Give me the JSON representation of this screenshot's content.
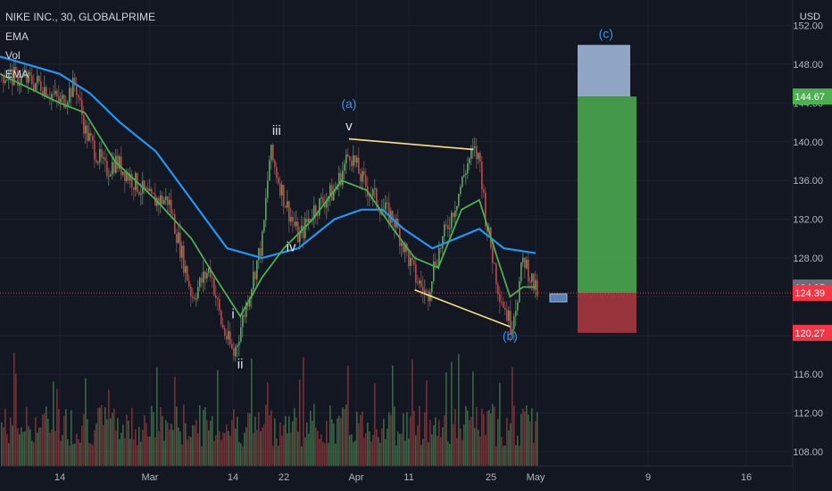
{
  "header": {
    "symbol": "NIKE INC., 30, GLOBALPRIME",
    "indicators": [
      "EMA",
      "Vol",
      "EMA"
    ]
  },
  "price_axis": {
    "currency": "USD",
    "ticks": [
      152,
      148,
      144,
      140,
      136,
      132,
      128,
      124,
      120,
      116,
      112,
      108
    ],
    "tick_labels": [
      "152.00",
      "148.00",
      "144.00",
      "140.00",
      "136.00",
      "132.00",
      "128.00",
      "124.00",
      "120.00",
      "116.00",
      "112.00",
      "108.00"
    ],
    "badges": [
      {
        "value": 144.67,
        "label": "144.67",
        "color": "#4caf50"
      },
      {
        "value": 124.95,
        "label": "124.95",
        "color": "#6a6d78"
      },
      {
        "value": 124.39,
        "label": "124.39",
        "color": "#f23645"
      },
      {
        "value": 120.27,
        "label": "120.27",
        "color": "#f23645"
      }
    ]
  },
  "time_axis": {
    "labels": [
      "14",
      "Mar",
      "14",
      "22",
      "Apr",
      "11",
      "25",
      "May",
      "9",
      "16"
    ]
  },
  "colors": {
    "background": "#131722",
    "grid": "#1e222d",
    "up": "#26a69a",
    "down": "#ef5350",
    "candle_up": "#4caf50",
    "candle_down": "#e53935",
    "ema_fast": "#4caf50",
    "ema_slow": "#2196f3",
    "trendline": "#ffe082",
    "target_box": "#a7bfe0",
    "profit_box": "#4caf50",
    "loss_box": "#b0373f",
    "wave_label": "#e0e3eb",
    "abc_label": "#3d8fe8"
  },
  "chart_data": {
    "type": "candlestick",
    "title": "NIKE INC., 30, GLOBALPRIME",
    "xlabel": "",
    "ylabel": "USD",
    "ylim": [
      106,
      153
    ],
    "grid": true,
    "price_path": [
      {
        "date": "Feb 08",
        "close": 147
      },
      {
        "date": "Feb 12",
        "close": 146
      },
      {
        "date": "Feb 14",
        "close": 144
      },
      {
        "date": "Feb 17",
        "close": 146
      },
      {
        "date": "Feb 19",
        "close": 141
      },
      {
        "date": "Feb 23",
        "close": 137
      },
      {
        "date": "Feb 25",
        "close": 138
      },
      {
        "date": "Mar 01",
        "close": 134
      },
      {
        "date": "Mar 04",
        "close": 134
      },
      {
        "date": "Mar 08",
        "close": 124
      },
      {
        "date": "Mar 11",
        "close": 127
      },
      {
        "date": "Mar 13",
        "close": 121
      },
      {
        "date": "Mar 15",
        "close": 118
      },
      {
        "date": "Mar 17",
        "close": 124
      },
      {
        "date": "Mar 19",
        "close": 130
      },
      {
        "date": "Mar 20",
        "close": 139
      },
      {
        "date": "Mar 22",
        "close": 134
      },
      {
        "date": "Mar 24",
        "close": 130
      },
      {
        "date": "Mar 26",
        "close": 133
      },
      {
        "date": "Mar 29",
        "close": 135
      },
      {
        "date": "Mar 31",
        "close": 139
      },
      {
        "date": "Apr 02",
        "close": 136
      },
      {
        "date": "Apr 06",
        "close": 133
      },
      {
        "date": "Apr 08",
        "close": 132
      },
      {
        "date": "Apr 12",
        "close": 126
      },
      {
        "date": "Apr 14",
        "close": 124
      },
      {
        "date": "Apr 15",
        "close": 127
      },
      {
        "date": "Apr 19",
        "close": 134
      },
      {
        "date": "Apr 21",
        "close": 138
      },
      {
        "date": "Apr 22",
        "close": 139
      },
      {
        "date": "Apr 23",
        "close": 138
      },
      {
        "date": "Apr 24",
        "close": 132
      },
      {
        "date": "Apr 26",
        "close": 125
      },
      {
        "date": "Apr 28",
        "close": 121
      },
      {
        "date": "Apr 29",
        "close": 124
      },
      {
        "date": "Apr 30",
        "close": 128
      },
      {
        "date": "May 01",
        "close": 124.4
      }
    ],
    "ema_fast": [
      {
        "date": "Feb 08",
        "value": 147
      },
      {
        "date": "Feb 14",
        "value": 144
      },
      {
        "date": "Feb 19",
        "value": 143
      },
      {
        "date": "Feb 25",
        "value": 138
      },
      {
        "date": "Mar 02",
        "value": 134
      },
      {
        "date": "Mar 08",
        "value": 130
      },
      {
        "date": "Mar 12",
        "value": 126
      },
      {
        "date": "Mar 16",
        "value": 122
      },
      {
        "date": "Mar 19",
        "value": 126
      },
      {
        "date": "Mar 22",
        "value": 129
      },
      {
        "date": "Mar 26",
        "value": 132
      },
      {
        "date": "Mar 30",
        "value": 136
      },
      {
        "date": "Apr 03",
        "value": 135
      },
      {
        "date": "Apr 08",
        "value": 131
      },
      {
        "date": "Apr 12",
        "value": 128
      },
      {
        "date": "Apr 16",
        "value": 127
      },
      {
        "date": "Apr 20",
        "value": 133
      },
      {
        "date": "Apr 23",
        "value": 134
      },
      {
        "date": "Apr 26",
        "value": 128
      },
      {
        "date": "Apr 28",
        "value": 124
      },
      {
        "date": "Apr 30",
        "value": 125
      },
      {
        "date": "May 01",
        "value": 125
      }
    ],
    "ema_slow": [
      {
        "date": "Feb 08",
        "value": 148.8
      },
      {
        "date": "Feb 14",
        "value": 147
      },
      {
        "date": "Feb 20",
        "value": 145
      },
      {
        "date": "Feb 26",
        "value": 142
      },
      {
        "date": "Mar 02",
        "value": 139
      },
      {
        "date": "Mar 08",
        "value": 134
      },
      {
        "date": "Mar 14",
        "value": 129
      },
      {
        "date": "Mar 19",
        "value": 128
      },
      {
        "date": "Mar 24",
        "value": 129
      },
      {
        "date": "Mar 29",
        "value": 132
      },
      {
        "date": "Apr 02",
        "value": 133
      },
      {
        "date": "Apr 06",
        "value": 133
      },
      {
        "date": "Apr 10",
        "value": 131
      },
      {
        "date": "Apr 15",
        "value": 129
      },
      {
        "date": "Apr 19",
        "value": 130
      },
      {
        "date": "Apr 23",
        "value": 131
      },
      {
        "date": "Apr 27",
        "value": 129
      },
      {
        "date": "May 01",
        "value": 128.5
      }
    ],
    "wave_labels": [
      {
        "text": "i",
        "date": "Mar 15",
        "price": 121.8
      },
      {
        "text": "ii",
        "date": "Mar 16",
        "price": 116.6
      },
      {
        "text": "iii",
        "date": "Mar 21",
        "price": 140.7
      },
      {
        "text": "iv",
        "date": "Mar 23",
        "price": 128.7
      },
      {
        "text": "v",
        "date": "Mar 31",
        "price": 141.2
      },
      {
        "text": "(a)",
        "date": "Mar 31",
        "price": 143.5
      },
      {
        "text": "(b)",
        "date": "Apr 28",
        "price": 119.5
      },
      {
        "text": "(c)",
        "date": "May 06",
        "price": 150.7
      }
    ],
    "trendlines": [
      {
        "from": {
          "date": "Mar 31",
          "price": 140.3
        },
        "to": {
          "date": "Apr 22",
          "price": 139.2
        }
      },
      {
        "from": {
          "date": "Apr 12",
          "price": 124.7
        },
        "to": {
          "date": "Apr 28",
          "price": 120.9
        }
      }
    ],
    "position": {
      "target_zone": [
        144.67,
        150
      ],
      "profit_zone": [
        124.39,
        144.67
      ],
      "stop_zone": [
        120.27,
        124.39
      ]
    },
    "volume_note": "Vol histogram along bottom pane, red/green bars"
  }
}
